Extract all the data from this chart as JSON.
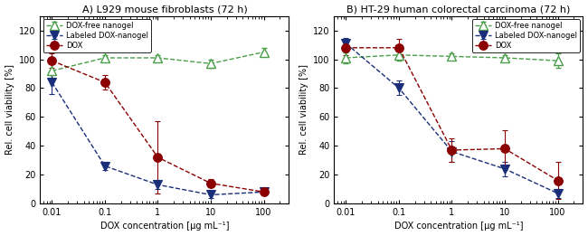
{
  "title_A": "A) L929 mouse fibroblasts (72 h)",
  "title_B": "B) HT-29 human colorectal carcinoma (72 h)",
  "xlabel": "DOX concentration [µg mL⁻¹]",
  "ylabel": "Rel. cell viability [%]",
  "x": [
    0.01,
    0.1,
    1,
    10,
    100
  ],
  "A": {
    "nanogel_y": [
      92,
      101,
      101,
      97,
      105
    ],
    "nanogel_err": [
      5,
      2,
      2,
      3,
      3
    ],
    "labeled_y": [
      84,
      26,
      13,
      6,
      8
    ],
    "labeled_err": [
      8,
      3,
      3,
      2,
      1
    ],
    "dox_y": [
      99,
      84,
      32,
      14,
      8
    ],
    "dox_err": [
      5,
      5,
      25,
      3,
      2
    ]
  },
  "B": {
    "nanogel_y": [
      101,
      103,
      102,
      101,
      99
    ],
    "nanogel_err": [
      4,
      4,
      2,
      2,
      5
    ],
    "labeled_y": [
      111,
      80,
      36,
      24,
      7
    ],
    "labeled_err": [
      4,
      5,
      7,
      5,
      3
    ],
    "dox_y": [
      108,
      108,
      37,
      38,
      16
    ],
    "dox_err": [
      5,
      6,
      8,
      13,
      13
    ]
  },
  "nanogel_color": "#4a9e4a",
  "labeled_color": "#1a2e7a",
  "dox_color": "#8b0000",
  "ylim": [
    0,
    130
  ],
  "yticks": [
    0,
    20,
    40,
    60,
    80,
    100,
    120
  ],
  "legend_labels": [
    "DOX-free nanogel",
    "Labeled DOX-nanogel",
    "DOX"
  ],
  "legend_loc_A": "upper left",
  "legend_loc_B": "upper right"
}
